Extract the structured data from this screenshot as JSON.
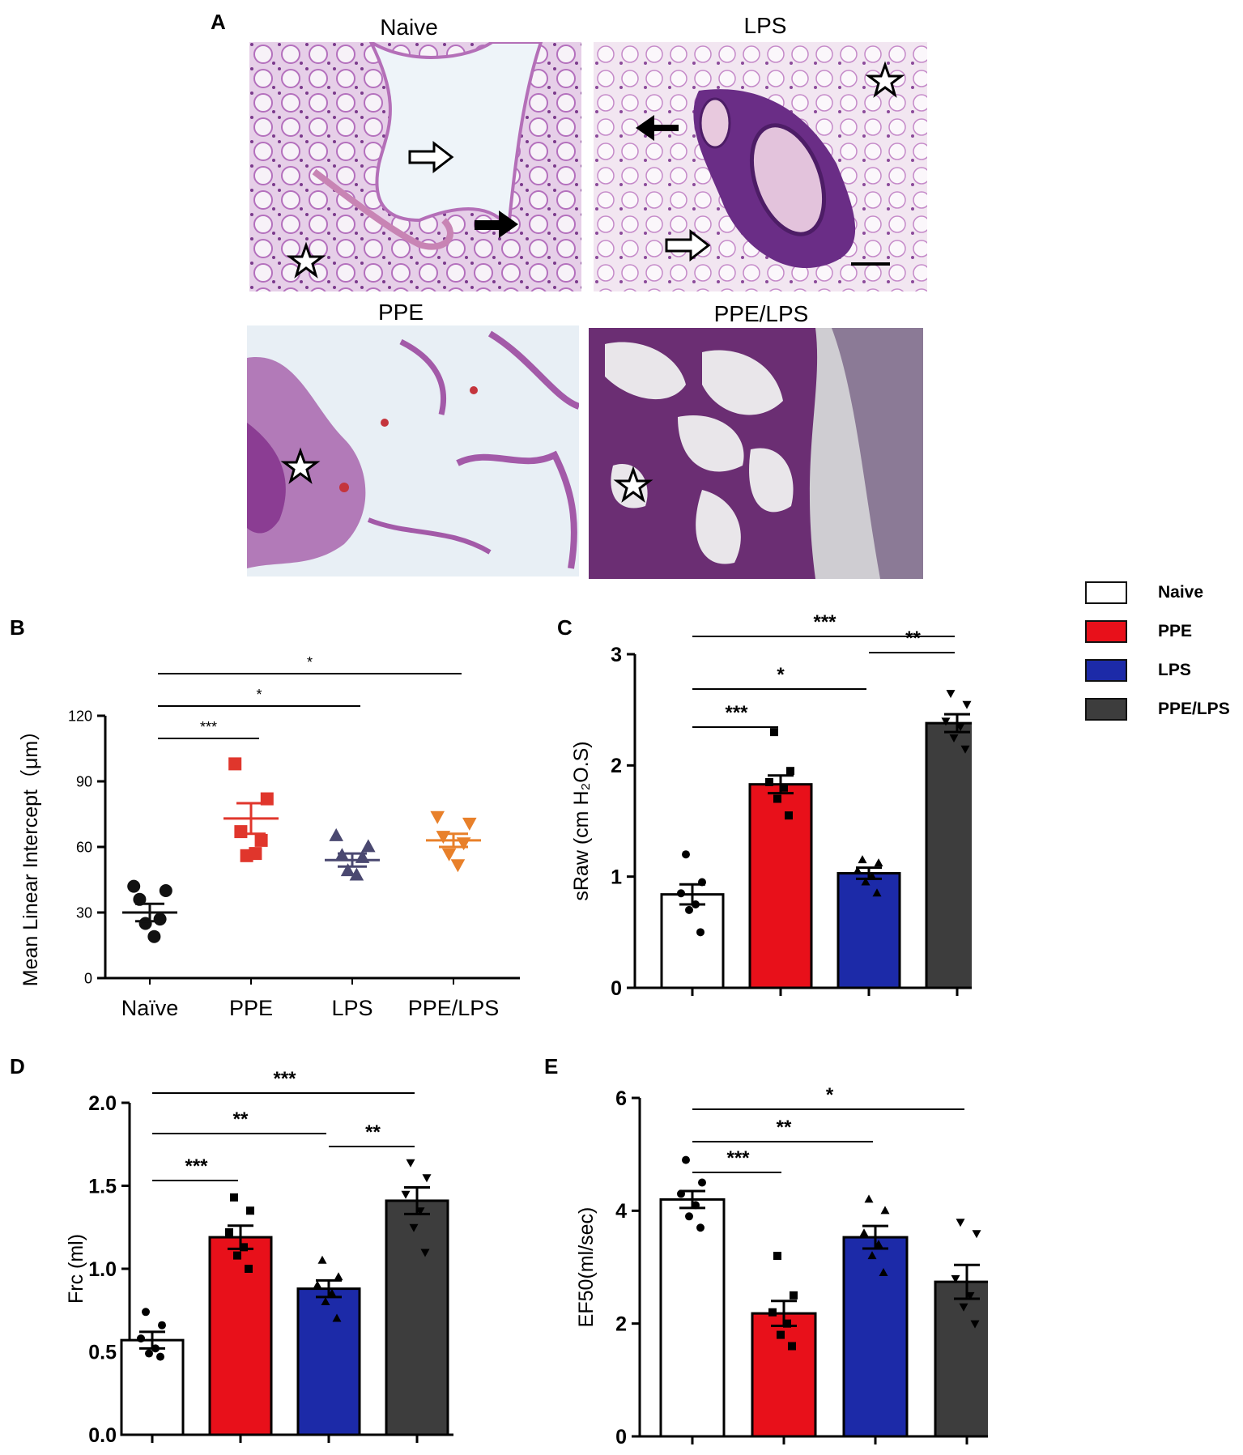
{
  "panel_a": {
    "letter": "A",
    "panels": [
      {
        "title": "Naive"
      },
      {
        "title": "LPS"
      },
      {
        "title": "PPE"
      },
      {
        "title": "PPE/LPS"
      }
    ]
  },
  "legend": {
    "items": [
      {
        "label": "Naive",
        "color": "#ffffff"
      },
      {
        "label": "PPE",
        "color": "#e8101a"
      },
      {
        "label": "LPS",
        "color": "#1c2aa8"
      },
      {
        "label": "PPE/LPS",
        "color": "#3d3d3d"
      }
    ]
  },
  "chart_data": [
    {
      "letter": "B",
      "type": "scatter",
      "categories": [
        "Naïve",
        "PPE",
        "LPS",
        "PPE/LPS"
      ],
      "ylabel": "Mean Linear Intercept（μm）",
      "ylim": [
        0,
        120
      ],
      "yticks": [
        "0",
        "30",
        "60",
        "90",
        "120"
      ],
      "series": [
        {
          "category": "Naïve",
          "color": "#111111",
          "marker": "circle",
          "mean": 30,
          "sem": 4,
          "points": [
            42,
            40,
            36,
            27,
            25,
            19
          ]
        },
        {
          "category": "PPE",
          "color": "#e0362c",
          "marker": "square",
          "mean": 73,
          "sem": 7,
          "points": [
            98,
            82,
            67,
            63,
            56,
            57
          ]
        },
        {
          "category": "LPS",
          "color": "#4a4870",
          "marker": "triangle",
          "mean": 54,
          "sem": 3,
          "points": [
            65,
            60,
            56,
            55,
            49,
            47
          ]
        },
        {
          "category": "PPE/LPS",
          "color": "#e8802a",
          "marker": "triangle-down",
          "mean": 63,
          "sem": 3,
          "points": [
            74,
            71,
            65,
            62,
            57,
            52
          ]
        }
      ],
      "significance": [
        {
          "from": 0,
          "to": 1,
          "label": "***"
        },
        {
          "from": 0,
          "to": 2,
          "label": "*"
        },
        {
          "from": 0,
          "to": 3,
          "label": "*"
        }
      ]
    },
    {
      "letter": "C",
      "type": "bar",
      "categories": [
        "Naive",
        "PPE",
        "LPS",
        "PPE/LPS"
      ],
      "ylabel": "sRaw (cm H₂O.S)",
      "ylim": [
        0,
        3
      ],
      "yticks": [
        "0",
        "1",
        "2",
        "3"
      ],
      "values": [
        0.84,
        1.83,
        1.03,
        2.38
      ],
      "sem": [
        0.09,
        0.08,
        0.05,
        0.08
      ],
      "colors": [
        "#ffffff",
        "#e8101a",
        "#1c2aa8",
        "#3d3d3d"
      ],
      "points": [
        [
          1.2,
          0.95,
          0.85,
          0.75,
          0.7,
          0.5
        ],
        [
          2.3,
          1.95,
          1.85,
          1.8,
          1.7,
          1.55
        ],
        [
          1.15,
          1.12,
          1.05,
          1.0,
          0.95,
          0.85
        ],
        [
          2.65,
          2.55,
          2.4,
          2.35,
          2.25,
          2.15
        ]
      ],
      "markers": [
        "circle",
        "square",
        "triangle",
        "triangle-down"
      ],
      "significance": [
        {
          "from": 0,
          "to": 1,
          "label": "***"
        },
        {
          "from": 0,
          "to": 2,
          "label": "*"
        },
        {
          "from": 2,
          "to": 3,
          "label": "**"
        },
        {
          "from": 0,
          "to": 3,
          "label": "***"
        }
      ]
    },
    {
      "letter": "D",
      "type": "bar",
      "categories": [
        "Naive",
        "PPE",
        "LPS",
        "PPE/LPS"
      ],
      "ylabel": "Frc (ml)",
      "ylim": [
        0,
        2
      ],
      "yticks": [
        "0.0",
        "0.5",
        "1.0",
        "1.5",
        "2.0"
      ],
      "values": [
        0.57,
        1.19,
        0.88,
        1.41
      ],
      "sem": [
        0.05,
        0.07,
        0.05,
        0.08
      ],
      "colors": [
        "#ffffff",
        "#e8101a",
        "#1c2aa8",
        "#3d3d3d"
      ],
      "points": [
        [
          0.74,
          0.66,
          0.58,
          0.52,
          0.49,
          0.47
        ],
        [
          1.43,
          1.35,
          1.22,
          1.13,
          1.08,
          1.0
        ],
        [
          1.05,
          0.95,
          0.9,
          0.85,
          0.8,
          0.7
        ],
        [
          1.64,
          1.55,
          1.45,
          1.35,
          1.25,
          1.1
        ]
      ],
      "markers": [
        "circle",
        "square",
        "triangle",
        "triangle-down"
      ],
      "significance": [
        {
          "from": 0,
          "to": 1,
          "label": "***"
        },
        {
          "from": 0,
          "to": 2,
          "label": "**"
        },
        {
          "from": 2,
          "to": 3,
          "label": "**"
        },
        {
          "from": 0,
          "to": 3,
          "label": "***"
        }
      ]
    },
    {
      "letter": "E",
      "type": "bar",
      "categories": [
        "Naive",
        "PPE",
        "LPS",
        "PPE/LPS"
      ],
      "ylabel": "EF50(ml/sec)",
      "ylim": [
        0,
        6
      ],
      "yticks": [
        "0",
        "2",
        "4",
        "6"
      ],
      "values": [
        4.2,
        2.18,
        3.53,
        2.74
      ],
      "sem": [
        0.15,
        0.22,
        0.2,
        0.3
      ],
      "colors": [
        "#ffffff",
        "#e8101a",
        "#1c2aa8",
        "#3d3d3d"
      ],
      "points": [
        [
          4.9,
          4.5,
          4.3,
          4.1,
          3.9,
          3.7
        ],
        [
          3.2,
          2.5,
          2.2,
          2.0,
          1.8,
          1.6
        ],
        [
          4.2,
          4.0,
          3.6,
          3.4,
          3.2,
          2.9
        ],
        [
          3.8,
          3.6,
          2.8,
          2.5,
          2.3,
          2.0
        ]
      ],
      "markers": [
        "circle",
        "square",
        "triangle",
        "triangle-down"
      ],
      "significance": [
        {
          "from": 0,
          "to": 1,
          "label": "***"
        },
        {
          "from": 0,
          "to": 2,
          "label": "**"
        },
        {
          "from": 0,
          "to": 3,
          "label": "*"
        }
      ]
    }
  ]
}
